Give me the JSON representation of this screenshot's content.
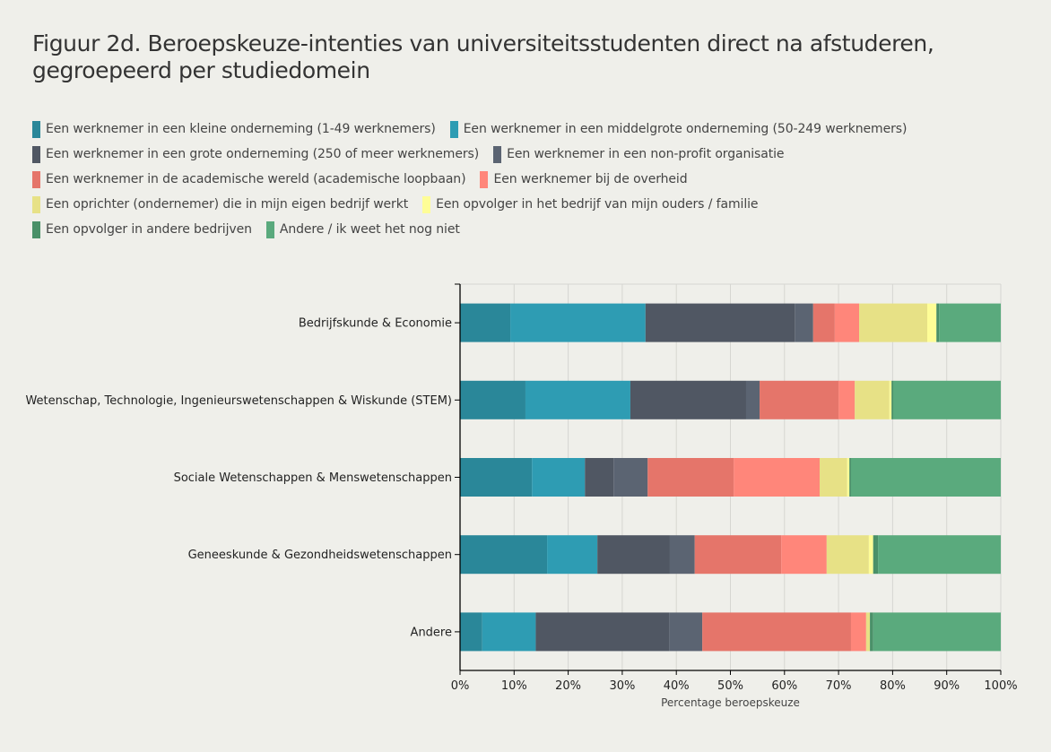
{
  "chart_data": {
    "type": "bar",
    "orientation": "horizontal",
    "stacked": true,
    "title": "Figuur 2d. Beroepskeuze-intenties van universiteitsstudenten direct na afstuderen, gegroepeerd per studiedomein",
    "xlabel": "Percentage beroepskeuze",
    "ylabel": "",
    "xlim": [
      0,
      100
    ],
    "x_ticks": [
      "0%",
      "10%",
      "20%",
      "30%",
      "40%",
      "50%",
      "60%",
      "70%",
      "80%",
      "90%",
      "100%"
    ],
    "grid": true,
    "legend_position": "top",
    "categories": [
      "Bedrijfskunde & Economie",
      "Wetenschap, Technologie, Ingenieurswetenschappen & Wiskunde (STEM)",
      "Sociale Wetenschappen & Menswetenschappen",
      "Geneeskunde & Gezondheidswetenschappen",
      "Andere"
    ],
    "series": [
      {
        "name": "Een werknemer in een kleine onderneming (1-49 werknemers)",
        "color": "#2a8799",
        "values": [
          9.3,
          12.1,
          13.3,
          16.1,
          4.1
        ]
      },
      {
        "name": "Een werknemer in een middelgrote onderneming (50-249 werknemers)",
        "color": "#2e9cb3",
        "values": [
          25.0,
          19.4,
          9.8,
          9.3,
          9.9
        ]
      },
      {
        "name": "Een werknemer in een grote onderneming (250 of meer werknemers)",
        "color": "#505763",
        "values": [
          27.6,
          21.4,
          5.3,
          13.4,
          24.7
        ]
      },
      {
        "name": "Een werknemer in een non-profit organisatie",
        "color": "#5b6472",
        "values": [
          3.4,
          2.5,
          6.3,
          4.6,
          6.1
        ]
      },
      {
        "name": "Een werknemer in de academische wereld (academische loopbaan)",
        "color": "#e5756a",
        "values": [
          4.0,
          14.6,
          15.9,
          16.0,
          27.5
        ]
      },
      {
        "name": "Een werknemer bij de overheid",
        "color": "#ff867a",
        "values": [
          4.5,
          3.0,
          15.9,
          8.4,
          2.8
        ]
      },
      {
        "name": "Een oprichter (ondernemer) die in mijn eigen bedrijf werkt",
        "color": "#e7e186",
        "values": [
          12.6,
          6.4,
          5.1,
          7.8,
          0.7
        ]
      },
      {
        "name": "Een opvolger in het bedrijf van mijn ouders / familie",
        "color": "#fefd97",
        "values": [
          1.7,
          0.4,
          0.4,
          0.8,
          0.0
        ]
      },
      {
        "name": "Een opvolger in andere bedrijven",
        "color": "#4a9068",
        "values": [
          0.5,
          0.3,
          0.3,
          0.9,
          0.6
        ]
      },
      {
        "name": "Andere / ik weet het nog niet",
        "color": "#5aaa7d",
        "values": [
          11.4,
          19.9,
          27.7,
          22.7,
          23.6
        ]
      }
    ]
  },
  "legend_rows": [
    [
      0,
      1
    ],
    [
      2,
      3
    ],
    [
      4,
      5
    ],
    [
      6,
      7
    ],
    [
      8,
      9
    ]
  ]
}
